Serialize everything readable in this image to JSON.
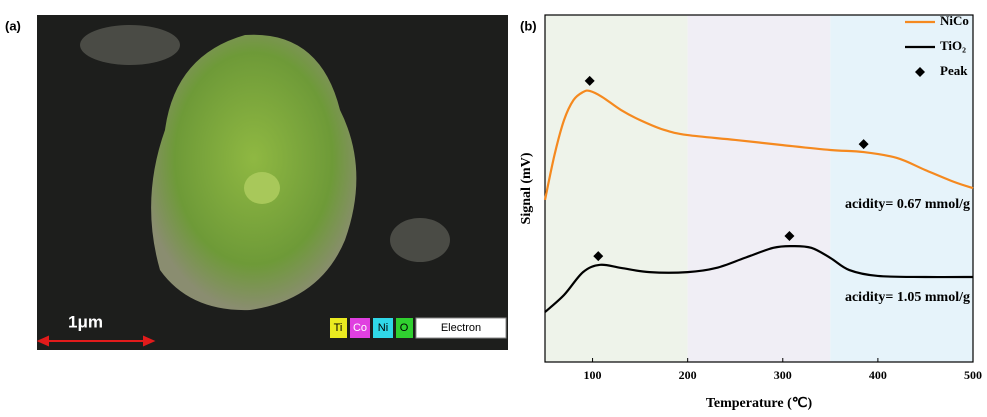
{
  "image": {
    "label": "(a)",
    "scale_bar": "1μm",
    "elements": [
      "Ti",
      "Co",
      "Ni",
      "O",
      "Electron"
    ]
  },
  "chart_data": {
    "type": "line",
    "label": "(b)",
    "x_label": "Temperature (℃)",
    "y_label": "Signal (mV)",
    "xlim": [
      50,
      500
    ],
    "xticks": [
      100,
      200,
      300,
      400,
      500
    ],
    "ylim": [
      0,
      100
    ],
    "bands": [
      {
        "range": [
          50,
          200
        ],
        "color": "#eef3ea"
      },
      {
        "range": [
          200,
          350
        ],
        "color": "#f0eef5"
      },
      {
        "range": [
          350,
          500
        ],
        "color": "#e6f3fa"
      }
    ],
    "legend": "top-right",
    "series": [
      {
        "name": "NiCo",
        "color": "#f5891f",
        "x": [
          50,
          60,
          70,
          80,
          90,
          97,
          110,
          130,
          150,
          175,
          200,
          250,
          300,
          350,
          385,
          420,
          450,
          480,
          500
        ],
        "values": [
          46.7,
          59.7,
          69.7,
          75.5,
          77.8,
          78.1,
          76.4,
          72.6,
          69.7,
          66.9,
          65.4,
          64.0,
          62.5,
          61.1,
          60.5,
          58.8,
          55.3,
          51.9,
          50.1
        ]
      },
      {
        "name": "TiO₂",
        "color": "#000000",
        "x": [
          50,
          70,
          90,
          108,
          130,
          160,
          200,
          230,
          260,
          290,
          310,
          330,
          350,
          370,
          400,
          450,
          500
        ],
        "values": [
          14.4,
          19.3,
          25.9,
          28.0,
          27.1,
          25.9,
          25.9,
          27.1,
          30.0,
          32.9,
          33.4,
          32.9,
          30.0,
          26.5,
          24.8,
          24.5,
          24.5
        ]
      },
      {
        "name": "Peak",
        "color": "#000000",
        "marker": "diamond",
        "x": [
          97,
          385,
          106,
          307
        ],
        "values": [
          81.0,
          62.8,
          30.5,
          36.3
        ]
      }
    ],
    "annotations": [
      "acidity= 0.67 mmol/g",
      "acidity= 1.05 mmol/g"
    ]
  }
}
